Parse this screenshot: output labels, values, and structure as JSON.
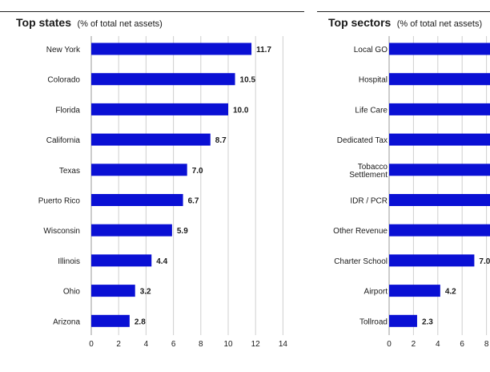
{
  "colors": {
    "bar": "#0a10d4",
    "grid": "#cfcfcf",
    "rule": "#222222"
  },
  "chart_data": [
    {
      "type": "bar",
      "orientation": "horizontal",
      "title": "Top states",
      "subtitle": "(% of total net assets)",
      "categories": [
        "New York",
        "Colorado",
        "Florida",
        "California",
        "Texas",
        "Puerto Rico",
        "Wisconsin",
        "Illinois",
        "Ohio",
        "Arizona"
      ],
      "values": [
        11.7,
        10.5,
        10.0,
        8.7,
        7.0,
        6.7,
        5.9,
        4.4,
        3.2,
        2.8
      ],
      "xlim": [
        0,
        14
      ],
      "xticks": [
        0,
        2,
        4,
        6,
        8,
        10,
        12,
        14
      ],
      "grid": true,
      "data_labels": true
    },
    {
      "type": "bar",
      "orientation": "horizontal",
      "title": "Top sectors",
      "subtitle": "(% of total net assets)",
      "categories": [
        "Local GO",
        "Hospital",
        "Life Care",
        "Dedicated Tax",
        "Tobacco Settlement",
        "IDR / PCR",
        "Other Revenue",
        "Charter School",
        "Airport",
        "Tollroad"
      ],
      "values": [
        null,
        null,
        null,
        null,
        null,
        null,
        null,
        7.0,
        4.2,
        2.3
      ],
      "xticks": [
        0,
        2,
        4,
        6,
        8
      ],
      "grid": true,
      "data_labels": true
    }
  ]
}
